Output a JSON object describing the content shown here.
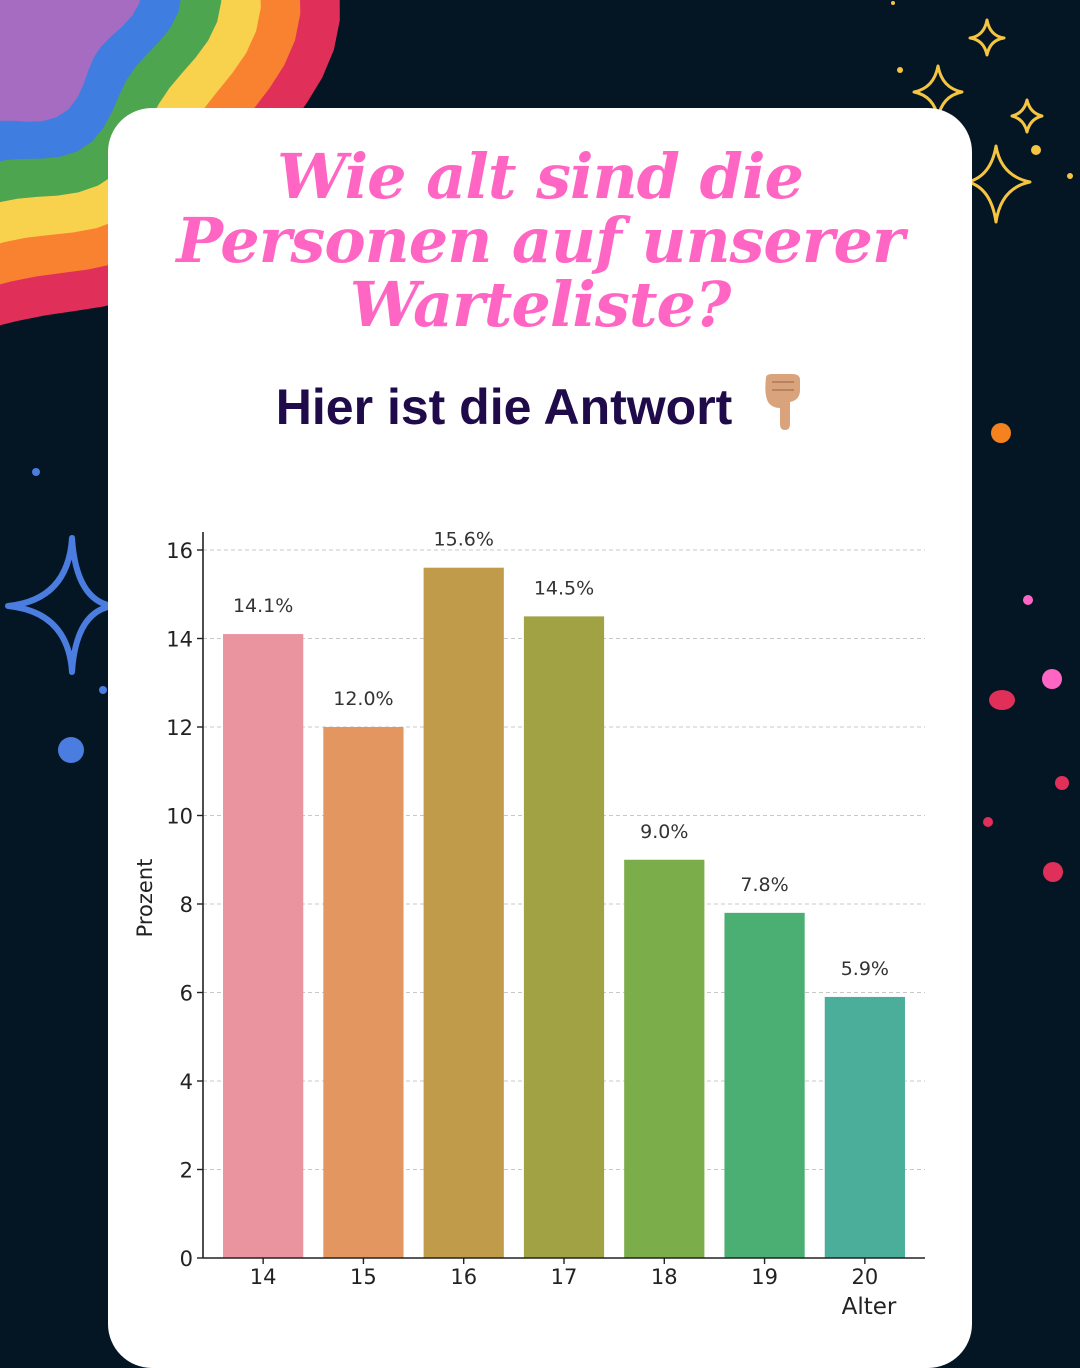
{
  "title_lines": [
    "Wie alt sind die",
    "Personen auf unserer",
    "Warteliste?"
  ],
  "subtitle": "Hier ist die Antwort",
  "subtitle_icon": "pointing-down-hand-icon",
  "colors": {
    "background": "#041624",
    "card": "#ffffff",
    "title": "#ff66c4",
    "subtitle": "#1f0a4a",
    "rainbow": [
      "#a66cc1",
      "#3f7ee0",
      "#4ea54f",
      "#f9d24d",
      "#f98231",
      "#e02f59"
    ]
  },
  "chart_data": {
    "type": "bar",
    "categories": [
      "14",
      "15",
      "16",
      "17",
      "18",
      "19",
      "20"
    ],
    "values": [
      14.1,
      12.0,
      15.6,
      14.5,
      9.0,
      7.8,
      5.9
    ],
    "value_labels": [
      "14.1%",
      "12.0%",
      "15.6%",
      "14.5%",
      "9.0%",
      "7.8%",
      "5.9%"
    ],
    "bar_colors": [
      "#e9949f",
      "#e3965f",
      "#bf9b4a",
      "#a1a244",
      "#7bad4b",
      "#4bae73",
      "#4aae9a"
    ],
    "xlabel": "Alter",
    "ylabel": "Prozent",
    "ylim": [
      0,
      16.4
    ],
    "yticks": [
      0,
      2,
      4,
      6,
      8,
      10,
      12,
      14,
      16
    ],
    "grid": true
  }
}
